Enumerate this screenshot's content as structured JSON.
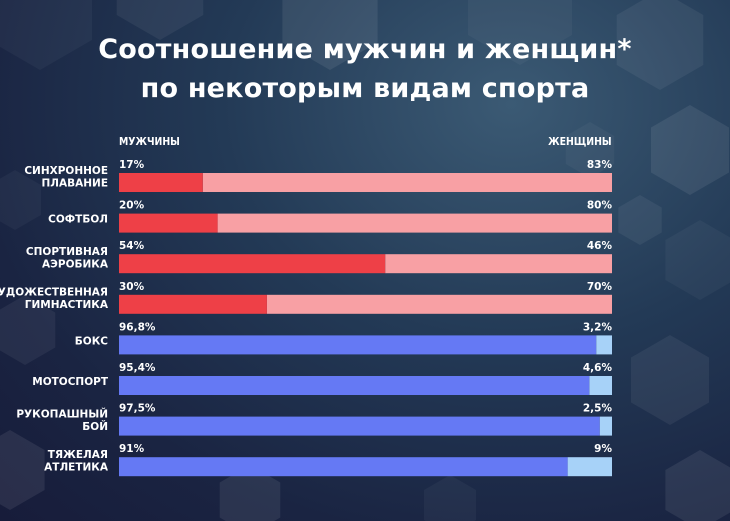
{
  "title_line1": "Соотношение мужчин и женщин*",
  "title_line2": "по некоторым видам спорта",
  "chart_data": {
    "type": "bar",
    "orientation": "horizontal-stacked-100",
    "series": [
      {
        "name": "МУЖЧИНЫ",
        "values": [
          17,
          20,
          54,
          30,
          96.8,
          95.4,
          97.5,
          91
        ]
      },
      {
        "name": "ЖЕНЩИНЫ",
        "values": [
          83,
          80,
          46,
          70,
          3.2,
          4.6,
          2.5,
          9
        ]
      }
    ],
    "categories": [
      [
        "СИНХРОННОЕ",
        "ПЛАВАНИЕ"
      ],
      [
        "СОФТБОЛ"
      ],
      [
        "СПОРТИВНАЯ",
        "АЭРОБИКА"
      ],
      [
        "ХУДОЖЕСТВЕННАЯ",
        "ГИМНАСТИКА"
      ],
      [
        "БОКС"
      ],
      [
        "МОТОСПОРТ"
      ],
      [
        "РУКОПАШНЫЙ",
        "БОЙ"
      ],
      [
        "ТЯЖЕЛАЯ",
        "АТЛЕТИКА"
      ]
    ],
    "labels_men": [
      "17%",
      "20%",
      "54%",
      "30%",
      "96,8%",
      "95,4%",
      "97,5%",
      "91%"
    ],
    "labels_women": [
      "83%",
      "80%",
      "46%",
      "70%",
      "3,2%",
      "4,6%",
      "2,5%",
      "9%"
    ],
    "xlim": [
      0,
      100
    ]
  },
  "colors": {
    "red_men": "#ee4047",
    "red_women": "#f8a0a4",
    "blue_men": "#6579f4",
    "blue_women": "#a7d2f8"
  }
}
